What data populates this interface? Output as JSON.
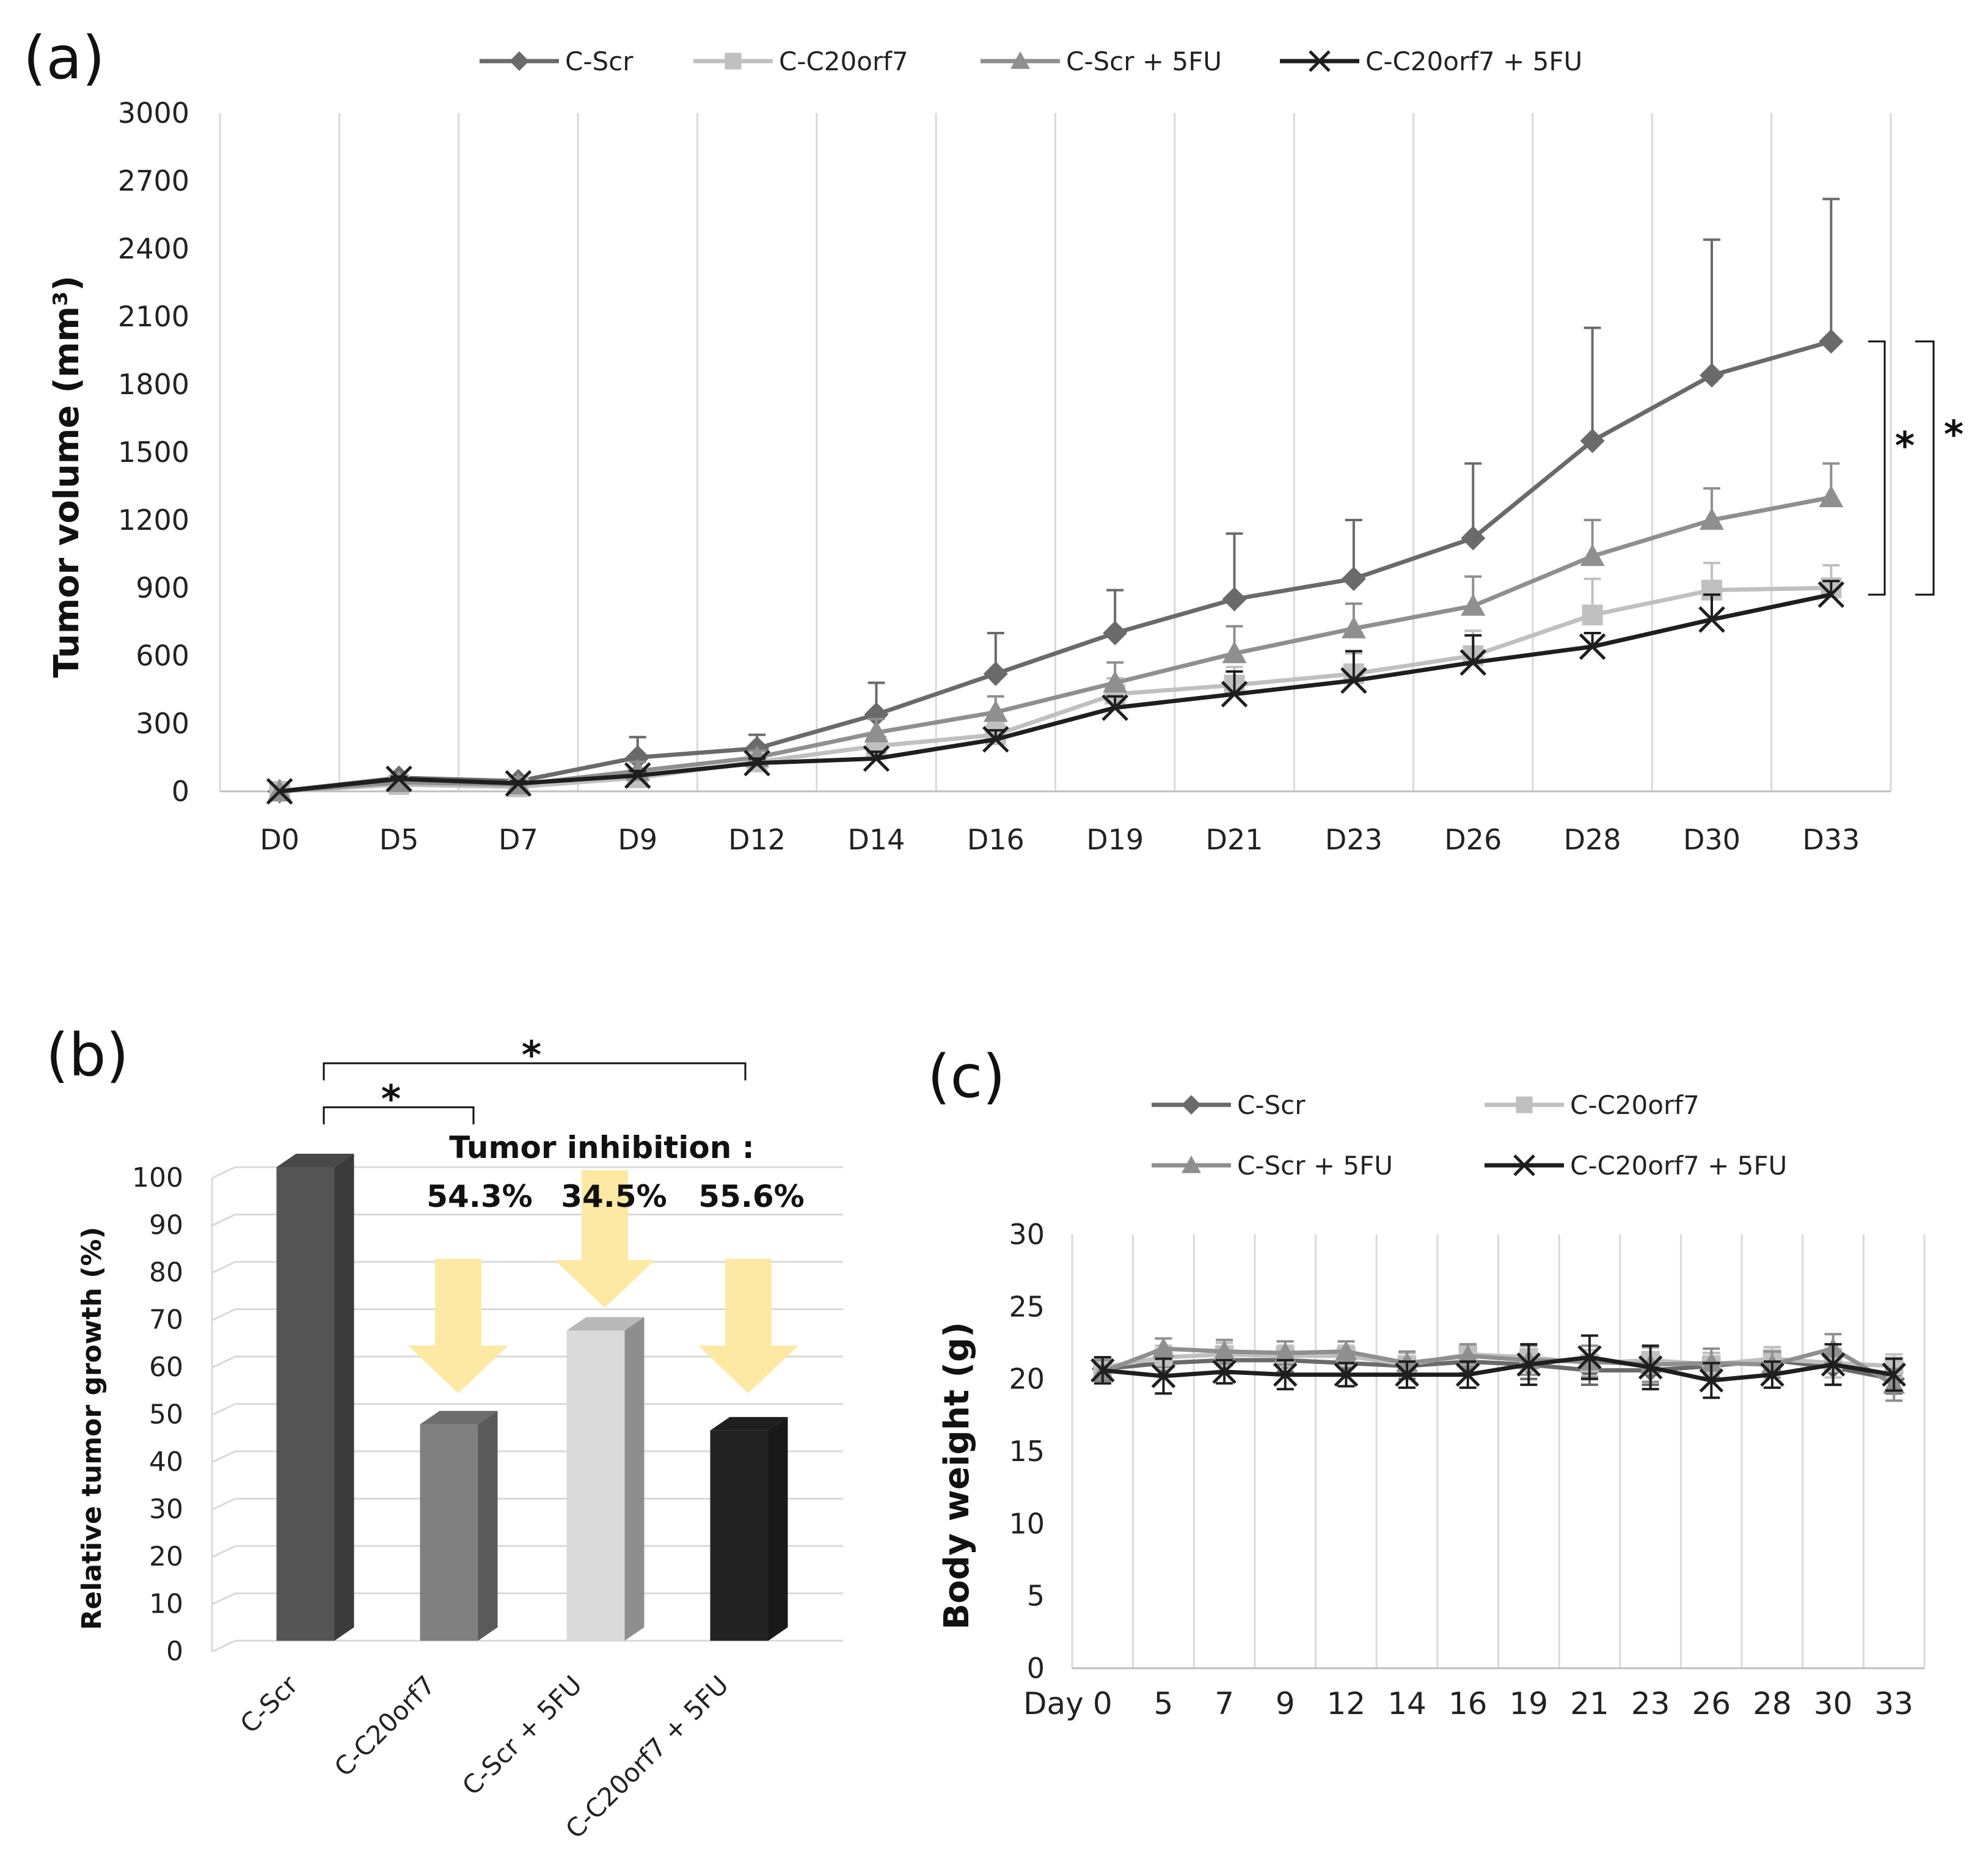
{
  "panels": {
    "a": {
      "letter": "(a)"
    },
    "b": {
      "letter": "(b)"
    },
    "c": {
      "letter": "(c)"
    }
  },
  "series_styles": [
    {
      "name": "C-Scr",
      "color": "#6a6a6a",
      "marker": "diamond"
    },
    {
      "name": "C-C20orf7",
      "color": "#c0c0c0",
      "marker": "square"
    },
    {
      "name": "C-Scr + 5FU",
      "color": "#8f8f8f",
      "marker": "triangle"
    },
    {
      "name": "C-C20orf7 + 5FU",
      "color": "#1e1e1e",
      "marker": "x"
    }
  ],
  "chart_data": [
    {
      "id": "a",
      "type": "line",
      "title": "",
      "xlabel": "",
      "ylabel": "Tumor volume (mm³)",
      "ylim": [
        0,
        3000
      ],
      "yticks": [
        0,
        300,
        600,
        900,
        1200,
        1500,
        1800,
        2100,
        2400,
        2700,
        3000
      ],
      "x": [
        "D0",
        "D5",
        "D7",
        "D9",
        "D12",
        "D14",
        "D16",
        "D19",
        "D21",
        "D23",
        "D26",
        "D28",
        "D30",
        "D33"
      ],
      "grid": "vertical",
      "legend": "top",
      "series": [
        {
          "name": "C-Scr",
          "values": [
            0,
            60,
            45,
            150,
            190,
            340,
            520,
            700,
            850,
            940,
            1120,
            1550,
            1840,
            1990
          ],
          "err": [
            0,
            10,
            10,
            90,
            60,
            140,
            180,
            190,
            290,
            260,
            330,
            500,
            600,
            630
          ]
        },
        {
          "name": "C-C20orf7",
          "values": [
            0,
            30,
            20,
            60,
            130,
            200,
            250,
            430,
            470,
            520,
            600,
            780,
            890,
            900
          ],
          "err": [
            0,
            10,
            10,
            20,
            20,
            30,
            50,
            70,
            80,
            90,
            110,
            160,
            120,
            100
          ]
        },
        {
          "name": "C-Scr + 5FU",
          "values": [
            0,
            40,
            30,
            90,
            150,
            260,
            350,
            480,
            610,
            720,
            820,
            1040,
            1200,
            1300
          ],
          "err": [
            0,
            10,
            10,
            40,
            30,
            60,
            70,
            90,
            120,
            110,
            130,
            160,
            140,
            150
          ]
        },
        {
          "name": "C-C20orf7 + 5FU",
          "values": [
            0,
            55,
            35,
            70,
            125,
            145,
            230,
            370,
            430,
            490,
            570,
            640,
            760,
            870
          ],
          "err": [
            0,
            10,
            10,
            20,
            20,
            30,
            40,
            50,
            100,
            130,
            120,
            60,
            110,
            60
          ]
        }
      ],
      "annotations": [
        {
          "text": "*",
          "between": [
            "C-Scr",
            "C-C20orf7"
          ]
        },
        {
          "text": "*",
          "between": [
            "C-Scr",
            "C-C20orf7 + 5FU"
          ]
        }
      ]
    },
    {
      "id": "b",
      "type": "bar",
      "title": "",
      "ylabel": "Relative tumor growth (%)",
      "ylim": [
        0,
        100
      ],
      "yticks": [
        0,
        10,
        20,
        30,
        40,
        50,
        60,
        70,
        80,
        90,
        100
      ],
      "categories": [
        "C-Scr",
        "C-C20orf7",
        "C-Scr + 5FU",
        "C-C20orf7 + 5FU"
      ],
      "values": [
        100,
        45.7,
        65.5,
        44.4
      ],
      "bar_colors": [
        "#555555",
        "#808080",
        "#dadada",
        "#232323"
      ],
      "annotation_title": "Tumor inhibition :",
      "inhibition_labels": [
        "54.3%",
        "34.5%",
        "55.6%"
      ],
      "significance": [
        {
          "text": "*",
          "from": "C-Scr",
          "to": "C-C20orf7"
        },
        {
          "text": "*",
          "from": "C-Scr",
          "to": "C-C20orf7 + 5FU"
        }
      ]
    },
    {
      "id": "c",
      "type": "line",
      "title": "",
      "xlabel": "Day",
      "ylabel": "Body weight (g)",
      "ylim": [
        0,
        30
      ],
      "yticks": [
        0,
        5,
        10,
        15,
        20,
        25,
        30
      ],
      "x": [
        "0",
        "5",
        "7",
        "9",
        "12",
        "14",
        "16",
        "19",
        "21",
        "23",
        "26",
        "28",
        "30",
        "33"
      ],
      "grid": "vertical",
      "legend": "top",
      "series": [
        {
          "name": "C-Scr",
          "values": [
            20.7,
            21.1,
            21.3,
            21.3,
            21.1,
            20.9,
            21.2,
            21.0,
            20.6,
            20.6,
            20.9,
            21.3,
            20.8,
            20.0
          ],
          "err": [
            0.8,
            0.9,
            0.9,
            0.8,
            0.8,
            0.9,
            0.8,
            1.0,
            1.0,
            1.0,
            0.9,
            0.9,
            1.2,
            1.0
          ]
        },
        {
          "name": "C-C20orf7",
          "values": [
            20.8,
            21.5,
            21.7,
            21.6,
            21.6,
            21.0,
            21.7,
            21.5,
            21.1,
            21.3,
            21.0,
            21.4,
            21.1,
            20.9
          ],
          "err": [
            0.7,
            0.8,
            0.8,
            0.7,
            0.7,
            0.8,
            0.7,
            0.9,
            0.9,
            0.9,
            0.8,
            0.8,
            1.0,
            0.8
          ]
        },
        {
          "name": "C-Scr + 5FU",
          "values": [
            20.5,
            22.1,
            21.9,
            21.8,
            21.9,
            21.1,
            21.6,
            21.3,
            21.2,
            21.0,
            21.1,
            21.0,
            22.1,
            19.6
          ],
          "err": [
            0.8,
            0.7,
            0.8,
            0.8,
            0.7,
            0.8,
            0.8,
            1.0,
            1.1,
            1.2,
            1.0,
            0.9,
            1.0,
            1.1
          ]
        },
        {
          "name": "C-C20orf7 + 5FU",
          "values": [
            20.6,
            20.2,
            20.5,
            20.3,
            20.3,
            20.3,
            20.3,
            21.0,
            21.5,
            20.8,
            19.9,
            20.3,
            21.0,
            20.3
          ],
          "err": [
            0.9,
            1.2,
            0.8,
            1.0,
            0.8,
            0.9,
            0.9,
            1.4,
            1.5,
            1.5,
            1.2,
            0.9,
            1.4,
            1.1
          ]
        }
      ]
    }
  ]
}
